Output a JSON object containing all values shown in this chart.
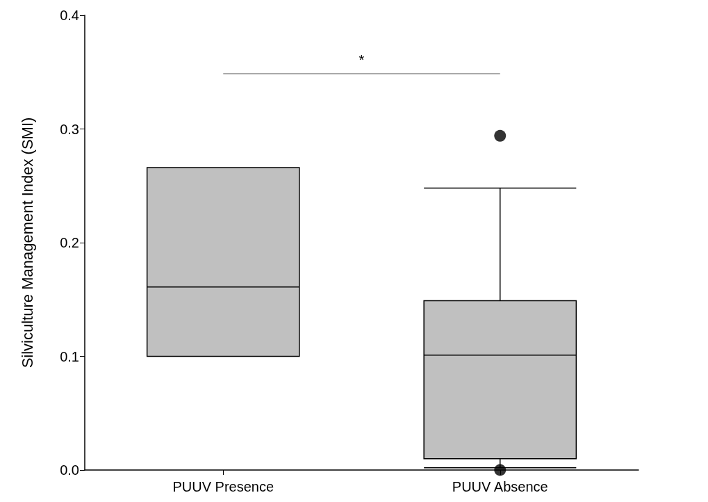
{
  "chart_data": {
    "type": "box",
    "ylabel": "Silviculture Management Index (SMI)",
    "categories": [
      "PUUV Presence",
      "PUUV Absence"
    ],
    "series": [
      {
        "color": "#c0c0c0",
        "boxes": [
          {
            "low": 0.1,
            "q1": 0.1,
            "median": 0.161,
            "q3": 0.266,
            "high": 0.266
          },
          {
            "low": 0.002,
            "q1": 0.01,
            "median": 0.101,
            "q3": 0.149,
            "high": 0.248,
            "outliers": [
              0.294,
              0.0
            ]
          }
        ]
      }
    ],
    "marker": "circle",
    "ylim": [
      0,
      0.4
    ],
    "yticks": [
      {
        "value": 0,
        "label": "0.0"
      },
      {
        "value": 0.1,
        "label": "0.1"
      },
      {
        "value": 0.2,
        "label": "0.2"
      },
      {
        "value": 0.3,
        "label": "0.3"
      },
      {
        "value": 0.4,
        "label": "0.4"
      }
    ],
    "annotations": [
      "*"
    ]
  }
}
